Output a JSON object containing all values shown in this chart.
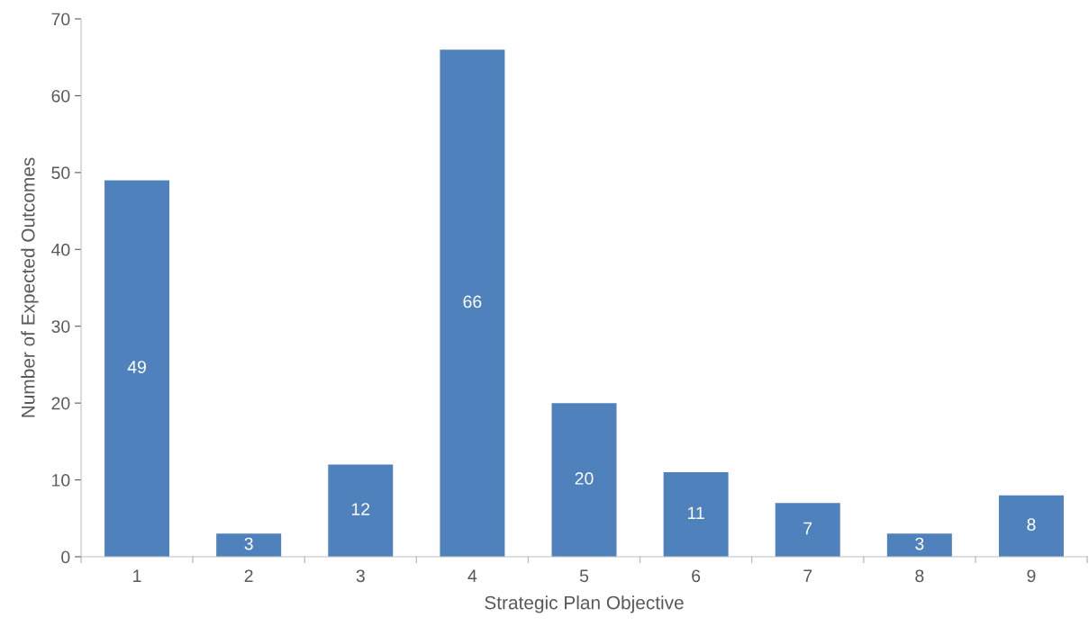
{
  "chart_data": {
    "type": "bar",
    "xlabel": "Strategic Plan Objective",
    "ylabel": "Number of Expected Outcomes",
    "categories": [
      "1",
      "2",
      "3",
      "4",
      "5",
      "6",
      "7",
      "8",
      "9"
    ],
    "values": [
      49,
      3,
      12,
      66,
      20,
      11,
      7,
      3,
      8
    ],
    "color": "#4f81bd",
    "ylim": [
      0,
      70
    ],
    "yticks": [
      0,
      10,
      20,
      30,
      40,
      50,
      60,
      70
    ],
    "grid": false,
    "data_labels": true
  }
}
